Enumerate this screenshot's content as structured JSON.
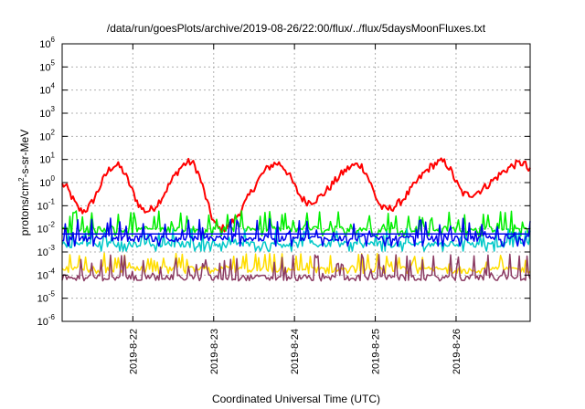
{
  "chart_data": {
    "type": "line",
    "title": "/data/run/goesPlots/archive/2019-08-26/22:00/flux/../flux/5daysMoonFluxes.txt",
    "xlabel": "Coordinated Universal Time (UTC)",
    "ylabel_parts": {
      "base": "protons/cm",
      "exp": "2",
      "rest": "-s-sr-MeV"
    },
    "y_scale": "log",
    "ylim": [
      1e-06,
      1000000.0
    ],
    "y_ticks": [
      {
        "base": "10",
        "exp": "-6",
        "value": 1e-06
      },
      {
        "base": "10",
        "exp": "-5",
        "value": 1e-05
      },
      {
        "base": "10",
        "exp": "-4",
        "value": 0.0001
      },
      {
        "base": "10",
        "exp": "-3",
        "value": 0.001
      },
      {
        "base": "10",
        "exp": "-2",
        "value": 0.01
      },
      {
        "base": "10",
        "exp": "-1",
        "value": 0.1
      },
      {
        "base": "10",
        "exp": "0",
        "value": 1
      },
      {
        "base": "10",
        "exp": "1",
        "value": 10
      },
      {
        "base": "10",
        "exp": "2",
        "value": 100
      },
      {
        "base": "10",
        "exp": "3",
        "value": 1000
      },
      {
        "base": "10",
        "exp": "4",
        "value": 10000
      },
      {
        "base": "10",
        "exp": "5",
        "value": 100000
      },
      {
        "base": "10",
        "exp": "6",
        "value": 1000000
      }
    ],
    "xlim": [
      "2019-08-21T03:00",
      "2019-08-26T22:00"
    ],
    "x_ticks": [
      {
        "label": "2019-8-22",
        "value": "2019-08-22T00:00"
      },
      {
        "label": "2019-8-23",
        "value": "2019-08-23T00:00"
      },
      {
        "label": "2019-8-24",
        "value": "2019-08-24T00:00"
      },
      {
        "label": "2019-8-25",
        "value": "2019-08-25T00:00"
      },
      {
        "label": "2019-8-26",
        "value": "2019-08-26T00:00"
      }
    ],
    "grid": true,
    "series": [
      {
        "color": "#ff0000",
        "style": "smooth",
        "base": 0.08,
        "peak": 7,
        "peaks": [
          "2019-08-21T19:00",
          "2019-08-22T17:00",
          "2019-08-23T19:00",
          "2019-08-24T19:00",
          "2019-08-25T20:00",
          "2019-08-26T20:00"
        ],
        "troughs": [
          {
            "t": "2019-08-21T09:00",
            "v": 0.06
          },
          {
            "t": "2019-08-22T04:00",
            "v": 0.06
          },
          {
            "t": "2019-08-23T02:00",
            "v": 0.01
          },
          {
            "t": "2019-08-24T04:00",
            "v": 0.15
          },
          {
            "t": "2019-08-25T03:00",
            "v": 0.07
          },
          {
            "t": "2019-08-26T03:00",
            "v": 0.3
          }
        ]
      },
      {
        "color": "#00ee00",
        "style": "spiky",
        "base": 0.01,
        "spike_max": 0.06,
        "low": 0.005
      },
      {
        "color": "#00c8c8",
        "style": "spiky",
        "base": 0.0022,
        "spike_max": 0.01,
        "low": 0.0011
      },
      {
        "color": "#0000ee",
        "style": "spiky",
        "base": 0.004,
        "spike_max": 0.03,
        "low": 0.0018,
        "flat": 0.006
      },
      {
        "color": "#ffdd00",
        "style": "spiky",
        "base": 0.00018,
        "spike_max": 0.0009,
        "low": 0.00012
      },
      {
        "color": "#8b3a62",
        "style": "spiky",
        "base": 8e-05,
        "spike_max": 0.0008,
        "low": 6e-05
      }
    ]
  }
}
